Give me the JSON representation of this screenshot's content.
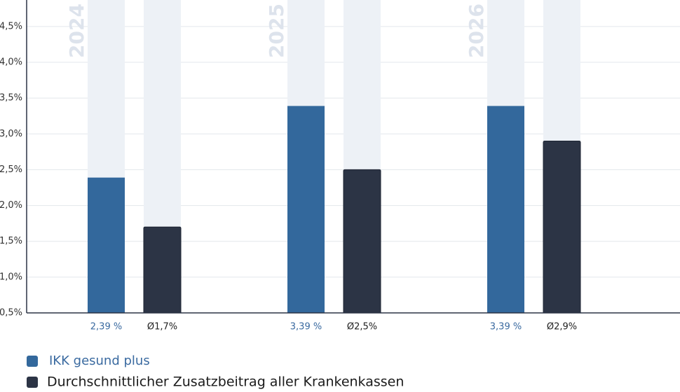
{
  "chart_data": {
    "type": "bar",
    "categories": [
      "2024",
      "2025",
      "2026"
    ],
    "series": [
      {
        "name": "IKK gesund plus",
        "color": "#33689c",
        "values": [
          2.39,
          3.39,
          3.39
        ],
        "value_labels": [
          "2,39 %",
          "3,39 %",
          "3,39 %"
        ]
      },
      {
        "name": "Durchschnittlicher Zusatzbeitrag aller Krankenkassen",
        "color": "#2c3445",
        "values": [
          1.7,
          2.5,
          2.9
        ],
        "value_labels": [
          "Ø1,7%",
          "Ø2,5%",
          "Ø2,9%"
        ]
      }
    ],
    "ylim": [
      0.5,
      4.87
    ],
    "yticks": [
      {
        "value": 0.5,
        "label": "0,5%"
      },
      {
        "value": 1.0,
        "label": "1,0%"
      },
      {
        "value": 1.5,
        "label": "1,5%"
      },
      {
        "value": 2.0,
        "label": "2,0%"
      },
      {
        "value": 2.5,
        "label": "2,5%"
      },
      {
        "value": 3.0,
        "label": "3,0%"
      },
      {
        "value": 3.5,
        "label": "3,5%"
      },
      {
        "value": 4.0,
        "label": "4,0%"
      },
      {
        "value": 4.5,
        "label": "4,5%"
      }
    ],
    "grid": true
  }
}
